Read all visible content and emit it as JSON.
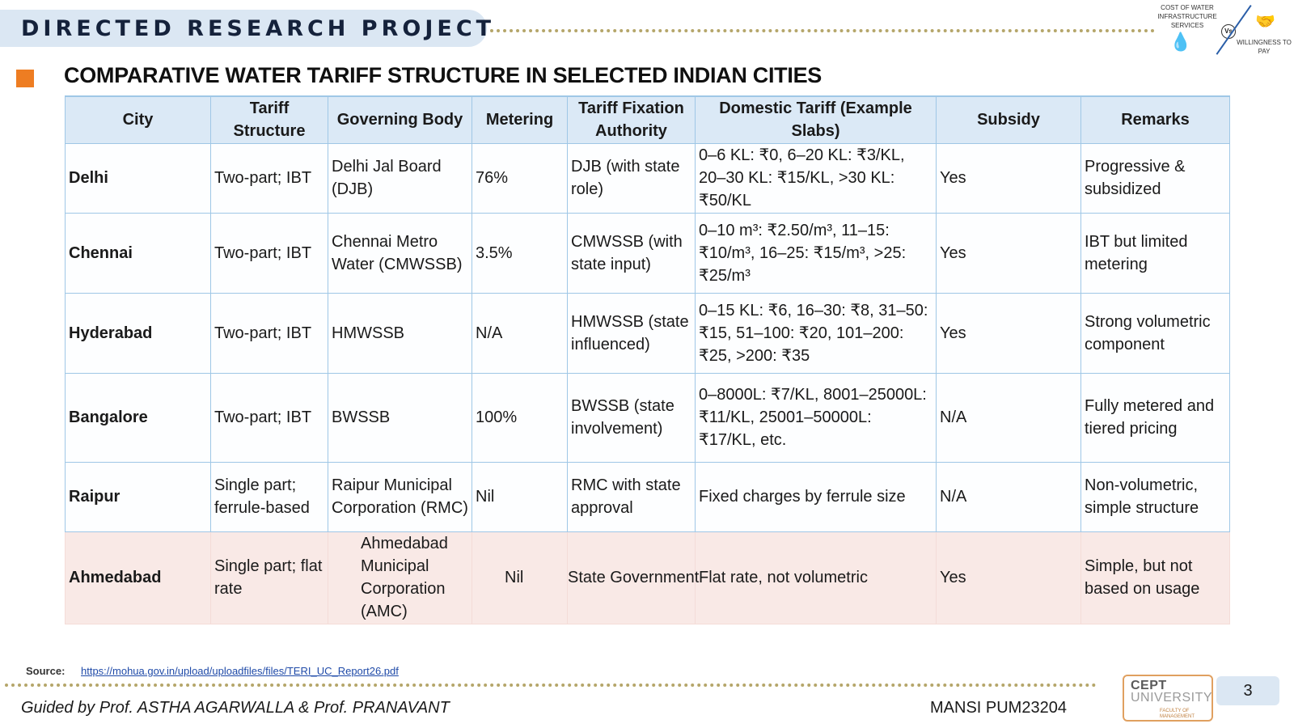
{
  "header": {
    "title": "DIRECTED RESEARCH PROJECT",
    "logo_left_text": "COST OF WATER INFRASTRUCTURE SERVICES",
    "logo_vs": "Vs",
    "logo_right_text": "WILLINGNESS TO PAY"
  },
  "slide": {
    "title": "COMPARATIVE WATER TARIFF STRUCTURE IN SELECTED INDIAN CITIES"
  },
  "table": {
    "headers": [
      "City",
      "Tariff Structure",
      "Governing Body",
      "Metering",
      "Tariff Fixation Authority",
      "Domestic Tariff (Example Slabs)",
      "Subsidy",
      "Remarks"
    ],
    "rows": [
      [
        "Delhi",
        "Two-part; IBT",
        "Delhi Jal Board (DJB)",
        "76%",
        "DJB (with state role)",
        "0–6 KL: ₹0, 6–20 KL: ₹3/KL, 20–30 KL: ₹15/KL, >30 KL: ₹50/KL",
        "Yes",
        "Progressive & subsidized"
      ],
      [
        "Chennai",
        "Two-part; IBT",
        "Chennai Metro Water (CMWSSB)",
        "3.5%",
        "CMWSSB (with state input)",
        "0–10 m³: ₹2.50/m³, 11–15: ₹10/m³, 16–25: ₹15/m³, >25: ₹25/m³",
        "Yes",
        "IBT but limited metering"
      ],
      [
        "Hyderabad",
        "Two-part; IBT",
        "HMWSSB",
        "N/A",
        "HMWSSB (state influenced)",
        "0–15 KL: ₹6, 16–30: ₹8, 31–50: ₹15, 51–100: ₹20, 101–200: ₹25, >200: ₹35",
        "Yes",
        "Strong volumetric component"
      ],
      [
        "Bangalore",
        "Two-part; IBT",
        "BWSSB",
        "100%",
        "BWSSB (state involvement)",
        "0–8000L: ₹7/KL, 8001–25000L: ₹11/KL, 25001–50000L: ₹17/KL, etc.",
        "N/A",
        "Fully metered and tiered pricing"
      ],
      [
        "Raipur",
        "Single part; ferrule-based",
        "Raipur Municipal Corporation (RMC)",
        "Nil",
        "RMC with state approval",
        "Fixed charges by ferrule size",
        "N/A",
        "Non-volumetric, simple structure"
      ],
      [
        "Ahmedabad",
        "Single part; flat rate",
        "Ahmedabad Municipal Corporation (AMC)",
        "Nil",
        "State Government",
        "Flat rate, not volumetric",
        "Yes",
        "Simple, but not based on usage"
      ]
    ]
  },
  "footer": {
    "source_label": "Source:",
    "source_url": "https://mohua.gov.in/upload/uploadfiles/files/TERI_UC_Report26.pdf",
    "guided_by": "Guided by Prof. ASTHA AGARWALLA  & Prof. PRANAVANT",
    "author": "MANSI  PUM23204",
    "logo_line1": "CEPT",
    "logo_line2": "UNIVERSITY",
    "logo_line3": "FACULTY OF MANAGEMENT",
    "page_number": "3"
  },
  "colors": {
    "header_bg": "#dbe7f3",
    "bullet": "#ee7d22",
    "table_header_bg": "#dbe9f6",
    "table_border": "#9fc7e6",
    "highlight_row_bg": "#f9e9e6"
  }
}
